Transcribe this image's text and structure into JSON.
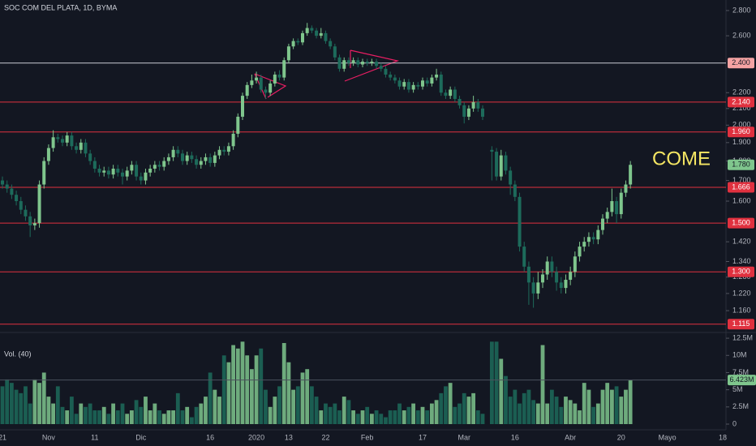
{
  "chart_data": {
    "type": "candlestick",
    "title": "SOC COM DEL PLATA, 1D, BYMA",
    "annotation": "COME",
    "categories": [
      "21",
      null,
      null,
      null,
      null,
      null,
      null,
      null,
      null,
      null,
      "Nov",
      null,
      null,
      null,
      null,
      null,
      null,
      null,
      null,
      null,
      "11",
      null,
      null,
      null,
      null,
      null,
      null,
      null,
      null,
      null,
      "Dic",
      null,
      null,
      null,
      null,
      null,
      null,
      null,
      null,
      null,
      null,
      null,
      null,
      null,
      null,
      "16",
      null,
      null,
      null,
      null,
      null,
      null,
      null,
      null,
      null,
      "2020",
      null,
      null,
      null,
      null,
      null,
      null,
      "13",
      null,
      null,
      null,
      null,
      null,
      null,
      null,
      "22",
      null,
      null,
      null,
      null,
      null,
      null,
      null,
      null,
      "Feb",
      null,
      null,
      null,
      null,
      null,
      null,
      null,
      null,
      null,
      null,
      null,
      "17",
      null,
      null,
      null,
      null,
      null,
      null,
      null,
      null,
      "Mar",
      null,
      null,
      null,
      null,
      null,
      null,
      null,
      null,
      null,
      null,
      "16",
      null,
      null,
      null,
      null,
      null,
      null,
      null,
      null,
      null,
      null,
      null,
      "Abr",
      null,
      null,
      null,
      null,
      null,
      null,
      null,
      null,
      null,
      null,
      "20",
      null,
      null,
      null,
      null,
      null,
      null,
      null,
      null,
      null,
      "Mayo",
      null,
      null,
      null,
      null,
      null,
      null,
      null,
      null,
      null,
      null,
      null,
      "18"
    ],
    "open": [
      1.7,
      1.68,
      1.66,
      1.63,
      1.6,
      1.56,
      1.53,
      1.49,
      1.5,
      1.68,
      1.8,
      1.87,
      1.93,
      1.92,
      1.9,
      1.94,
      1.88,
      1.86,
      1.9,
      1.84,
      1.8,
      1.76,
      1.74,
      1.75,
      1.73,
      1.76,
      1.74,
      1.72,
      1.75,
      1.78,
      1.72,
      1.7,
      1.74,
      1.76,
      1.78,
      1.77,
      1.8,
      1.82,
      1.86,
      1.84,
      1.8,
      1.83,
      1.81,
      1.78,
      1.8,
      1.82,
      1.79,
      1.83,
      1.86,
      1.85,
      1.88,
      1.95,
      2.05,
      2.18,
      2.25,
      2.28,
      2.3,
      2.22,
      2.2,
      2.26,
      2.32,
      2.3,
      2.42,
      2.52,
      2.56,
      2.55,
      2.62,
      2.66,
      2.64,
      2.6,
      2.62,
      2.56,
      2.52,
      2.44,
      2.36,
      2.42,
      2.4,
      2.42,
      2.39,
      2.41,
      2.4,
      2.41,
      2.38,
      2.36,
      2.32,
      2.3,
      2.28,
      2.24,
      2.27,
      2.22,
      2.25,
      2.24,
      2.28,
      2.26,
      2.3,
      2.32,
      2.2,
      2.18,
      2.22,
      2.16,
      2.12,
      2.05,
      2.1,
      2.14,
      2.1,
      null,
      1.86,
      1.85,
      1.72,
      1.83,
      1.75,
      1.68,
      1.62,
      1.4,
      1.32,
      1.26,
      1.22,
      1.26,
      1.29,
      1.34,
      1.3,
      1.26,
      1.24,
      1.27,
      1.3,
      1.36,
      1.4,
      1.42,
      1.44,
      1.43,
      1.47,
      1.52,
      1.55,
      1.6,
      1.54,
      1.64,
      1.68,
      null,
      null,
      null,
      null,
      null,
      null,
      null,
      null,
      null,
      null,
      null,
      null,
      null,
      null,
      null,
      null,
      null,
      null,
      null,
      null
    ],
    "high": [
      1.72,
      1.7,
      1.68,
      1.65,
      1.62,
      1.58,
      1.55,
      1.52,
      1.7,
      1.82,
      1.89,
      1.97,
      1.95,
      1.94,
      1.96,
      1.96,
      1.9,
      1.92,
      1.92,
      1.86,
      1.82,
      1.78,
      1.77,
      1.77,
      1.78,
      1.78,
      1.76,
      1.77,
      1.8,
      1.8,
      1.74,
      1.76,
      1.78,
      1.8,
      1.8,
      1.82,
      1.84,
      1.88,
      1.88,
      1.86,
      1.85,
      1.85,
      1.83,
      1.82,
      1.84,
      1.84,
      1.85,
      1.88,
      1.88,
      1.9,
      1.97,
      2.07,
      2.2,
      2.27,
      2.32,
      2.34,
      2.32,
      2.24,
      2.28,
      2.34,
      2.35,
      2.44,
      2.54,
      2.58,
      2.58,
      2.64,
      2.7,
      2.68,
      2.66,
      2.66,
      2.64,
      2.58,
      2.54,
      2.46,
      2.44,
      2.44,
      2.44,
      2.44,
      2.43,
      2.43,
      2.43,
      2.43,
      2.4,
      2.38,
      2.34,
      2.32,
      2.3,
      2.29,
      2.29,
      2.27,
      2.27,
      2.3,
      2.3,
      2.32,
      2.36,
      2.34,
      2.22,
      2.24,
      2.24,
      2.18,
      2.14,
      2.12,
      2.18,
      2.16,
      2.12,
      null,
      1.88,
      1.87,
      1.86,
      1.85,
      1.77,
      1.7,
      1.64,
      1.42,
      1.34,
      1.28,
      1.3,
      1.31,
      1.36,
      1.36,
      1.32,
      1.28,
      1.29,
      1.32,
      1.38,
      1.42,
      1.44,
      1.46,
      1.46,
      1.49,
      1.54,
      1.57,
      1.66,
      1.62,
      1.66,
      1.7,
      1.8,
      null,
      null,
      null,
      null,
      null,
      null,
      null,
      null,
      null,
      null,
      null,
      null,
      null,
      null,
      null,
      null,
      null,
      null,
      null,
      null
    ],
    "low": [
      1.66,
      1.64,
      1.61,
      1.58,
      1.54,
      1.51,
      1.44,
      1.47,
      1.48,
      1.66,
      1.78,
      1.85,
      1.9,
      1.88,
      1.88,
      1.86,
      1.84,
      1.84,
      1.82,
      1.78,
      1.74,
      1.72,
      1.72,
      1.71,
      1.71,
      1.72,
      1.68,
      1.7,
      1.73,
      1.7,
      1.68,
      1.68,
      1.72,
      1.74,
      1.75,
      1.75,
      1.78,
      1.8,
      1.82,
      1.78,
      1.78,
      1.79,
      1.76,
      1.76,
      1.78,
      1.77,
      1.77,
      1.81,
      1.83,
      1.83,
      1.86,
      1.93,
      2.03,
      2.16,
      2.23,
      2.26,
      2.2,
      2.16,
      2.18,
      2.24,
      2.28,
      2.28,
      2.4,
      2.5,
      2.53,
      2.53,
      2.6,
      2.62,
      2.58,
      2.58,
      2.54,
      2.5,
      2.42,
      2.34,
      2.34,
      2.38,
      2.38,
      2.37,
      2.37,
      2.38,
      2.38,
      2.36,
      2.34,
      2.3,
      2.28,
      2.26,
      2.22,
      2.22,
      2.2,
      2.2,
      2.22,
      2.22,
      2.24,
      2.24,
      2.28,
      2.18,
      2.16,
      2.16,
      2.14,
      2.1,
      2.01,
      2.03,
      2.08,
      2.08,
      2.03,
      null,
      1.7,
      1.7,
      1.7,
      1.73,
      1.63,
      1.6,
      1.38,
      1.3,
      1.18,
      1.17,
      1.2,
      1.24,
      1.27,
      1.28,
      1.23,
      1.22,
      1.22,
      1.25,
      1.28,
      1.34,
      1.38,
      1.4,
      1.41,
      1.41,
      1.45,
      1.5,
      1.53,
      1.5,
      1.52,
      1.62,
      1.66,
      null,
      null,
      null,
      null,
      null,
      null,
      null,
      null,
      null,
      null,
      null,
      null,
      null,
      null,
      null,
      null,
      null,
      null,
      null,
      null
    ],
    "close": [
      1.68,
      1.66,
      1.63,
      1.6,
      1.56,
      1.53,
      1.49,
      1.5,
      1.68,
      1.8,
      1.87,
      1.93,
      1.92,
      1.9,
      1.94,
      1.88,
      1.86,
      1.9,
      1.84,
      1.8,
      1.76,
      1.74,
      1.75,
      1.73,
      1.76,
      1.74,
      1.72,
      1.75,
      1.78,
      1.72,
      1.7,
      1.74,
      1.76,
      1.78,
      1.77,
      1.8,
      1.82,
      1.86,
      1.84,
      1.8,
      1.83,
      1.81,
      1.78,
      1.8,
      1.82,
      1.79,
      1.83,
      1.86,
      1.85,
      1.88,
      1.95,
      2.05,
      2.18,
      2.25,
      2.28,
      2.3,
      2.22,
      2.2,
      2.26,
      2.32,
      2.3,
      2.42,
      2.52,
      2.56,
      2.55,
      2.62,
      2.66,
      2.64,
      2.6,
      2.62,
      2.56,
      2.52,
      2.44,
      2.36,
      2.42,
      2.4,
      2.42,
      2.39,
      2.41,
      2.4,
      2.41,
      2.38,
      2.36,
      2.32,
      2.3,
      2.28,
      2.24,
      2.27,
      2.22,
      2.25,
      2.24,
      2.28,
      2.26,
      2.3,
      2.32,
      2.2,
      2.18,
      2.22,
      2.16,
      2.12,
      2.05,
      2.1,
      2.14,
      2.1,
      2.05,
      null,
      1.85,
      1.72,
      1.83,
      1.75,
      1.68,
      1.62,
      1.4,
      1.32,
      1.26,
      1.22,
      1.26,
      1.29,
      1.34,
      1.3,
      1.26,
      1.24,
      1.27,
      1.3,
      1.36,
      1.4,
      1.42,
      1.44,
      1.43,
      1.47,
      1.52,
      1.55,
      1.6,
      1.54,
      1.64,
      1.68,
      1.78,
      null,
      null,
      null,
      null,
      null,
      null,
      null,
      null,
      null,
      null,
      null,
      null,
      null,
      null,
      null,
      null,
      null,
      null,
      null,
      null
    ],
    "close_labels": [
      null,
      null,
      null,
      null,
      null,
      null,
      null,
      null,
      null,
      null,
      null,
      null,
      null,
      null,
      null,
      null,
      null,
      null,
      null,
      null,
      null,
      null,
      null,
      null,
      null,
      null,
      null,
      null,
      null,
      null,
      null,
      null,
      null,
      null,
      null,
      null,
      null,
      null,
      null,
      null,
      null,
      null,
      null,
      null,
      null,
      null,
      null,
      null,
      null,
      null,
      null,
      null,
      null,
      null,
      null,
      null,
      null,
      null,
      null,
      null,
      null,
      null,
      null,
      null,
      null,
      null,
      null,
      null,
      null,
      null,
      null,
      null,
      null,
      null,
      null,
      null,
      null,
      null,
      null,
      null,
      null,
      null,
      null,
      null,
      null,
      null,
      null,
      null,
      null,
      null,
      null,
      null,
      null,
      null,
      null,
      null,
      null,
      null,
      null,
      null,
      null,
      null,
      null,
      null,
      null,
      null,
      null,
      null,
      null,
      null,
      null,
      null,
      null,
      null,
      null,
      null,
      null,
      null,
      null,
      null,
      null,
      null,
      null,
      null,
      null,
      null,
      null,
      null,
      null,
      null,
      null,
      null,
      null,
      null,
      null,
      null,
      "1.780",
      null,
      null,
      null,
      null,
      null,
      null,
      null,
      null,
      null,
      null,
      null,
      null,
      null,
      null,
      null,
      null,
      null,
      null,
      null,
      null
    ],
    "up_color": "#7fc68d",
    "down_color": "#1d6b5b",
    "ylim": [
      1.088,
      2.888
    ],
    "log": true,
    "yticks": [
      {
        "value": 2.8,
        "label": "2.800"
      },
      {
        "value": 2.6,
        "label": "2.600"
      },
      {
        "value": 2.2,
        "label": "2.200"
      },
      {
        "value": 2.1,
        "label": "2.100"
      },
      {
        "value": 2.0,
        "label": "2.000"
      },
      {
        "value": 1.9,
        "label": "1.900"
      },
      {
        "value": 1.8,
        "label": "1.800"
      },
      {
        "value": 1.7,
        "label": "1.700"
      },
      {
        "value": 1.6,
        "label": "1.600"
      },
      {
        "value": 1.42,
        "label": "1.420"
      },
      {
        "value": 1.34,
        "label": "1.340"
      },
      {
        "value": 1.28,
        "label": "1.280"
      },
      {
        "value": 1.22,
        "label": "1.220"
      },
      {
        "value": 1.16,
        "label": "1.160"
      }
    ],
    "levels": [
      {
        "value": 2.4,
        "label": "2.400",
        "color": "#c9ccd4",
        "label_color": "#f5a3a3"
      },
      {
        "value": 2.14,
        "label": "2.140",
        "color": "#e0313f",
        "label_color": "#e0313f"
      },
      {
        "value": 1.96,
        "label": "1.960",
        "color": "#e0313f",
        "label_color": "#e0313f"
      },
      {
        "value": 1.666,
        "label": "1.666",
        "color": "#e0313f",
        "label_color": "#e0313f"
      },
      {
        "value": 1.5,
        "label": "1.500",
        "color": "#e0313f",
        "label_color": "#e0313f"
      },
      {
        "value": 1.3,
        "label": "1.300",
        "color": "#e0313f",
        "label_color": "#e0313f"
      },
      {
        "value": 1.115,
        "label": "1.115",
        "color": "#e0313f",
        "label_color": "#e0313f"
      }
    ],
    "volume": {
      "type": "bar",
      "name": "Vol. (40)",
      "values": [
        5.5,
        6.5,
        6,
        5,
        4.5,
        5.5,
        3,
        6.5,
        6,
        7.5,
        4,
        3,
        5.5,
        2.5,
        2,
        4,
        1.5,
        3,
        2.5,
        3,
        2,
        2,
        2.5,
        1.5,
        3,
        2,
        3,
        1.5,
        2,
        3.5,
        2.5,
        4,
        2,
        3,
        2,
        1.5,
        2,
        2,
        4.5,
        2,
        2.5,
        1,
        2.5,
        3,
        4,
        7.5,
        5,
        4,
        10,
        9,
        11.5,
        11,
        12,
        10,
        8,
        10,
        11,
        5,
        2.5,
        4,
        5.5,
        11.8,
        9,
        5,
        5.5,
        7.5,
        8,
        5.5,
        4,
        2,
        3,
        2.5,
        3,
        2,
        4,
        3.5,
        2,
        1.5,
        2,
        2.5,
        1.5,
        2,
        1.5,
        1,
        2,
        2,
        3,
        2,
        2.5,
        3,
        2,
        2.5,
        2,
        3,
        3.5,
        4.5,
        5.5,
        6,
        2.5,
        3,
        4.5,
        4,
        4.5,
        2,
        1.5,
        null,
        12,
        12,
        9.5,
        7,
        4,
        5,
        3,
        4.5,
        5,
        3.5,
        3,
        11.5,
        3,
        5,
        4,
        2.5,
        4,
        3.5,
        3,
        2,
        6,
        5,
        2.5,
        3,
        5,
        6,
        5,
        5.5,
        4,
        5,
        6.423,
        null,
        null,
        null,
        null,
        null,
        null,
        null,
        null,
        null,
        null,
        null,
        null,
        null,
        null,
        null,
        null,
        null,
        null,
        null,
        null
      ],
      "value_labels": [
        null,
        null,
        null,
        null,
        null,
        null,
        null,
        null,
        null,
        null,
        null,
        null,
        null,
        null,
        null,
        null,
        null,
        null,
        null,
        null,
        null,
        null,
        null,
        null,
        null,
        null,
        null,
        null,
        null,
        null,
        null,
        null,
        null,
        null,
        null,
        null,
        null,
        null,
        null,
        null,
        null,
        null,
        null,
        null,
        null,
        null,
        null,
        null,
        null,
        null,
        null,
        null,
        null,
        null,
        null,
        null,
        null,
        null,
        null,
        null,
        null,
        null,
        null,
        null,
        null,
        null,
        null,
        null,
        null,
        null,
        null,
        null,
        null,
        null,
        null,
        null,
        null,
        null,
        null,
        null,
        null,
        null,
        null,
        null,
        null,
        null,
        null,
        null,
        null,
        null,
        null,
        null,
        null,
        null,
        null,
        null,
        null,
        null,
        null,
        null,
        null,
        null,
        null,
        null,
        null,
        null,
        null,
        null,
        null,
        null,
        null,
        null,
        null,
        null,
        null,
        null,
        null,
        null,
        null,
        null,
        null,
        null,
        null,
        null,
        null,
        null,
        null,
        null,
        null,
        null,
        null,
        null,
        null,
        null,
        null,
        null,
        "6.423M",
        null,
        null,
        null,
        null,
        null,
        null,
        null,
        null,
        null,
        null,
        null,
        null,
        null,
        null,
        null,
        null,
        null,
        null,
        null,
        null
      ],
      "ylim": [
        0,
        13.1
      ],
      "yticks": [
        {
          "value": 12.5,
          "label": "12.5M"
        },
        {
          "value": 10,
          "label": "10M"
        },
        {
          "value": 7.5,
          "label": "7.5M"
        },
        {
          "value": 5,
          "label": "5M"
        },
        {
          "value": 2.5,
          "label": "2.5M"
        },
        0
      ]
    }
  }
}
